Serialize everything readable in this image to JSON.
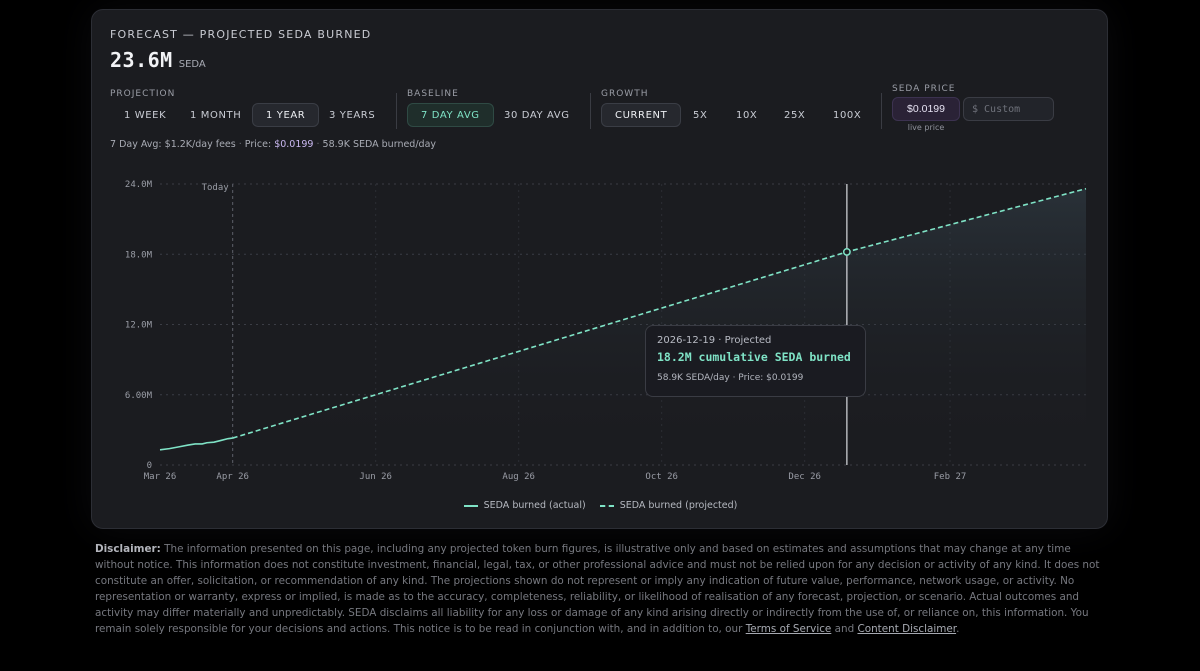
{
  "header": {
    "eyebrow": "FORECAST — PROJECTED SEDA BURNED",
    "value": "23.6M",
    "unit": "SEDA"
  },
  "controls": {
    "projection": {
      "label": "PROJECTION",
      "options": [
        "1 WEEK",
        "1 MONTH",
        "1 YEAR",
        "3 YEARS"
      ],
      "selected": "1 YEAR"
    },
    "baseline": {
      "label": "BASELINE",
      "options": [
        "7 DAY AVG",
        "30 DAY AVG"
      ],
      "selected": "7 DAY AVG"
    },
    "growth": {
      "label": "GROWTH",
      "options": [
        "CURRENT",
        "5X",
        "10X",
        "25X",
        "100X"
      ],
      "selected": "CURRENT"
    },
    "seda_price": {
      "label": "SEDA PRICE",
      "live_value": "$0.0199",
      "live_caption": "live price",
      "custom_placeholder": "$ Custom"
    }
  },
  "summary": {
    "avg": "7 Day Avg: $1.2K/day fees",
    "sep1": " · ",
    "price_label": "Price: ",
    "price": "$0.0199",
    "sep2": " · ",
    "burn": "58.9K SEDA burned/day"
  },
  "tooltip": {
    "date_line": "2026-12-19 · Projected",
    "value_line": "18.2M cumulative SEDA burned",
    "detail_line": "58.9K SEDA/day · Price: $0.0199"
  },
  "colors": {
    "accent": "#7fe3c6",
    "price": "#c9b8f0"
  },
  "chart_data": {
    "type": "line",
    "x_ticks": [
      "Mar 26",
      "Apr 26",
      "Jun 26",
      "Aug 26",
      "Oct 26",
      "Dec 26",
      "Feb 27"
    ],
    "y_ticks": [
      "0",
      "6.00M",
      "12.0M",
      "18.0M",
      "24.0M"
    ],
    "ylim": [
      0,
      24000000
    ],
    "xlim": [
      "2026-03-01",
      "2027-03-31"
    ],
    "today_label": "Today",
    "today": "2026-04-01",
    "grid": true,
    "legend_position": "bottom-center",
    "series": [
      {
        "name": "SEDA burned (actual)",
        "style": "solid",
        "points": [
          [
            "2026-03-01",
            1300000
          ],
          [
            "2026-03-05",
            1400000
          ],
          [
            "2026-03-09",
            1550000
          ],
          [
            "2026-03-13",
            1700000
          ],
          [
            "2026-03-16",
            1800000
          ],
          [
            "2026-03-19",
            1800000
          ],
          [
            "2026-03-21",
            1900000
          ],
          [
            "2026-03-24",
            1950000
          ],
          [
            "2026-03-27",
            2100000
          ],
          [
            "2026-03-30",
            2250000
          ],
          [
            "2026-04-01",
            2300000
          ]
        ]
      },
      {
        "name": "SEDA burned (projected)",
        "style": "dashed",
        "points": [
          [
            "2026-04-01",
            2300000
          ],
          [
            "2026-12-19",
            18200000
          ],
          [
            "2027-03-31",
            23600000
          ]
        ]
      }
    ],
    "hover": {
      "date": "2026-12-19",
      "value": 18200000
    }
  },
  "disclaimer": {
    "label": "Disclaimer:",
    "text": " The information presented on this page, including any projected token burn figures, is illustrative only and based on estimates and assumptions that may change at any time without notice. This information does not constitute investment, financial, legal, tax, or other professional advice and must not be relied upon for any decision or activity of any kind. It does not constitute an offer, solicitation, or recommendation of any kind. The projections shown do not represent or imply any indication of future value, performance, network usage, or activity. No representation or warranty, express or implied, is made as to the accuracy, completeness, reliability, or likelihood of realisation of any forecast, projection, or scenario. Actual outcomes and activity may differ materially and unpredictably. SEDA disclaims all liability for any loss or damage of any kind arising directly or indirectly from the use of, or reliance on, this information. You remain solely responsible for your decisions and actions. This notice is to be read in conjunction with, and in addition to, our ",
    "link1": "Terms of Service",
    "and": " and ",
    "link2": "Content Disclaimer",
    "end": "."
  }
}
